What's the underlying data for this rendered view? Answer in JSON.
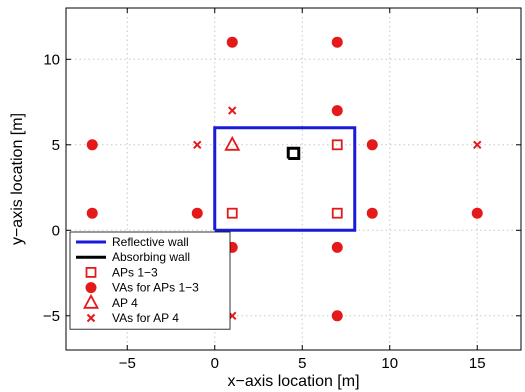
{
  "chart_data": {
    "type": "scatter",
    "xlabel": "x−axis location [m]",
    "ylabel": "y−axis location [m]",
    "xlim": [
      -8.5,
      17.5
    ],
    "ylim": [
      -7,
      13
    ],
    "xticks": [
      -5,
      0,
      5,
      10,
      15
    ],
    "yticks": [
      -5,
      0,
      5,
      10
    ],
    "xtick_labels": [
      "−5",
      "0",
      "5",
      "10",
      "15"
    ],
    "ytick_labels": [
      "−5",
      "0",
      "5",
      "10"
    ],
    "grid": true,
    "legend_position": "bottom-left",
    "reflective_wall": {
      "label": "Reflective wall",
      "color": "#1a1ad9",
      "points": [
        [
          0,
          0
        ],
        [
          8,
          0
        ],
        [
          8,
          6
        ],
        [
          0,
          6
        ],
        [
          0,
          0
        ]
      ]
    },
    "absorbing_wall": {
      "label": "Absorbing wall",
      "color": "#000000",
      "points": [
        [
          4.2,
          4.2
        ],
        [
          4.8,
          4.2
        ],
        [
          4.8,
          4.8
        ],
        [
          4.2,
          4.8
        ],
        [
          4.2,
          4.2
        ]
      ]
    },
    "series": [
      {
        "name": "APs 1−3",
        "marker": "square",
        "color": "#e41a1a",
        "points": [
          [
            1,
            1
          ],
          [
            7,
            1
          ],
          [
            7,
            5
          ]
        ]
      },
      {
        "name": "VAs for APs 1−3",
        "marker": "circle",
        "color": "#e41a1a",
        "points": [
          [
            -7,
            1
          ],
          [
            -1,
            1
          ],
          [
            9,
            1
          ],
          [
            15,
            1
          ],
          [
            -7,
            5
          ],
          [
            9,
            5
          ],
          [
            1,
            -1
          ],
          [
            7,
            -1
          ],
          [
            1,
            11
          ],
          [
            7,
            11
          ],
          [
            7,
            7
          ],
          [
            7,
            -5
          ]
        ]
      },
      {
        "name": "AP 4",
        "marker": "triangle",
        "color": "#e41a1a",
        "points": [
          [
            1,
            5
          ]
        ]
      },
      {
        "name": "VAs for AP 4",
        "marker": "x",
        "color": "#e41a1a",
        "points": [
          [
            -1,
            5
          ],
          [
            15,
            5
          ],
          [
            1,
            7
          ],
          [
            1,
            -5
          ]
        ]
      }
    ]
  }
}
